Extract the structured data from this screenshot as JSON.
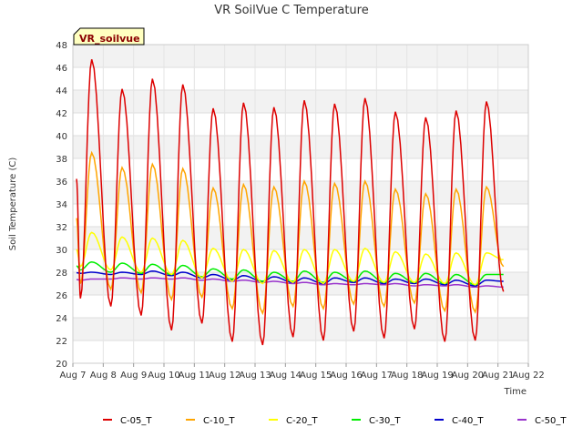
{
  "chart_data": {
    "type": "line",
    "title": "VR SoilVue C Temperature",
    "xlabel": "Time",
    "ylabel": "Soil Temperature (C)",
    "ylim": [
      20,
      48
    ],
    "xlim": [
      "Aug 7",
      "Aug 22"
    ],
    "x_ticks": [
      "Aug 7",
      "Aug 8",
      "Aug 9",
      "Aug 10",
      "Aug 11",
      "Aug 12",
      "Aug 13",
      "Aug 14",
      "Aug 15",
      "Aug 16",
      "Aug 17",
      "Aug 18",
      "Aug 19",
      "Aug 20",
      "Aug 21",
      "Aug 22"
    ],
    "y_ticks": [
      20,
      22,
      24,
      26,
      28,
      30,
      32,
      34,
      36,
      38,
      40,
      42,
      44,
      46,
      48
    ],
    "grid": true,
    "legend_position": "bottom",
    "station_badge": "VR_soilvue",
    "days": [
      "Aug 7",
      "Aug 8",
      "Aug 9",
      "Aug 10",
      "Aug 11",
      "Aug 12",
      "Aug 13",
      "Aug 14",
      "Aug 15",
      "Aug 16",
      "Aug 17",
      "Aug 18",
      "Aug 19",
      "Aug 20",
      "Aug 21"
    ],
    "series": [
      {
        "name": "C-05_T",
        "color": "#dd0000",
        "daily_max": [
          46.7,
          44.1,
          45.0,
          44.5,
          42.4,
          42.9,
          42.5,
          43.1,
          42.8,
          43.3,
          42.1,
          41.6,
          42.2,
          43.0
        ],
        "daily_min": [
          25.7,
          25.0,
          24.2,
          22.9,
          23.5,
          21.9,
          21.6,
          22.3,
          22.0,
          22.8,
          22.2,
          23.0,
          21.9,
          22.0
        ],
        "last": 26.3
      },
      {
        "name": "C-10_T",
        "color": "#ffa500",
        "daily_max": [
          38.5,
          37.2,
          37.5,
          37.1,
          35.4,
          35.7,
          35.5,
          36.0,
          35.8,
          36.0,
          35.3,
          34.9,
          35.3,
          35.5
        ],
        "daily_min": [
          27.0,
          26.5,
          26.2,
          25.6,
          25.8,
          24.8,
          24.4,
          25.0,
          24.8,
          25.2,
          25.0,
          25.3,
          24.6,
          24.5
        ],
        "last": 28.5
      },
      {
        "name": "C-20_T",
        "color": "#ffff00",
        "daily_max": [
          31.5,
          31.1,
          31.0,
          30.8,
          30.1,
          30.0,
          29.9,
          30.0,
          30.0,
          30.1,
          29.8,
          29.6,
          29.7,
          29.7
        ],
        "daily_min": [
          28.5,
          28.2,
          28.0,
          27.8,
          27.5,
          27.2,
          27.0,
          27.1,
          27.0,
          27.2,
          27.1,
          27.1,
          27.0,
          26.9
        ],
        "last": 29.1
      },
      {
        "name": "C-30_T",
        "color": "#00ee00",
        "daily_max": [
          28.9,
          28.8,
          28.7,
          28.6,
          28.3,
          28.2,
          28.0,
          28.1,
          28.0,
          28.1,
          27.9,
          27.9,
          27.8,
          27.8
        ],
        "daily_min": [
          28.2,
          28.0,
          27.9,
          27.8,
          27.6,
          27.4,
          27.2,
          27.2,
          27.1,
          27.2,
          27.1,
          27.1,
          27.0,
          26.9
        ],
        "last": 27.8
      },
      {
        "name": "C-40_T",
        "color": "#0000cc",
        "daily_max": [
          28.0,
          28.0,
          28.1,
          28.0,
          27.8,
          27.7,
          27.6,
          27.5,
          27.5,
          27.5,
          27.4,
          27.4,
          27.3,
          27.3
        ],
        "daily_min": [
          27.9,
          27.8,
          27.8,
          27.7,
          27.5,
          27.3,
          27.2,
          27.1,
          27.0,
          27.1,
          27.0,
          27.0,
          26.9,
          26.8
        ],
        "last": 27.2
      },
      {
        "name": "C-50_T",
        "color": "#9933cc",
        "daily_max": [
          27.4,
          27.5,
          27.5,
          27.5,
          27.4,
          27.3,
          27.2,
          27.1,
          27.0,
          27.0,
          27.0,
          26.9,
          26.9,
          26.8
        ],
        "daily_min": [
          27.3,
          27.4,
          27.4,
          27.4,
          27.3,
          27.2,
          27.1,
          27.0,
          26.9,
          26.9,
          26.9,
          26.8,
          26.8,
          26.7
        ],
        "last": 26.7
      }
    ]
  }
}
